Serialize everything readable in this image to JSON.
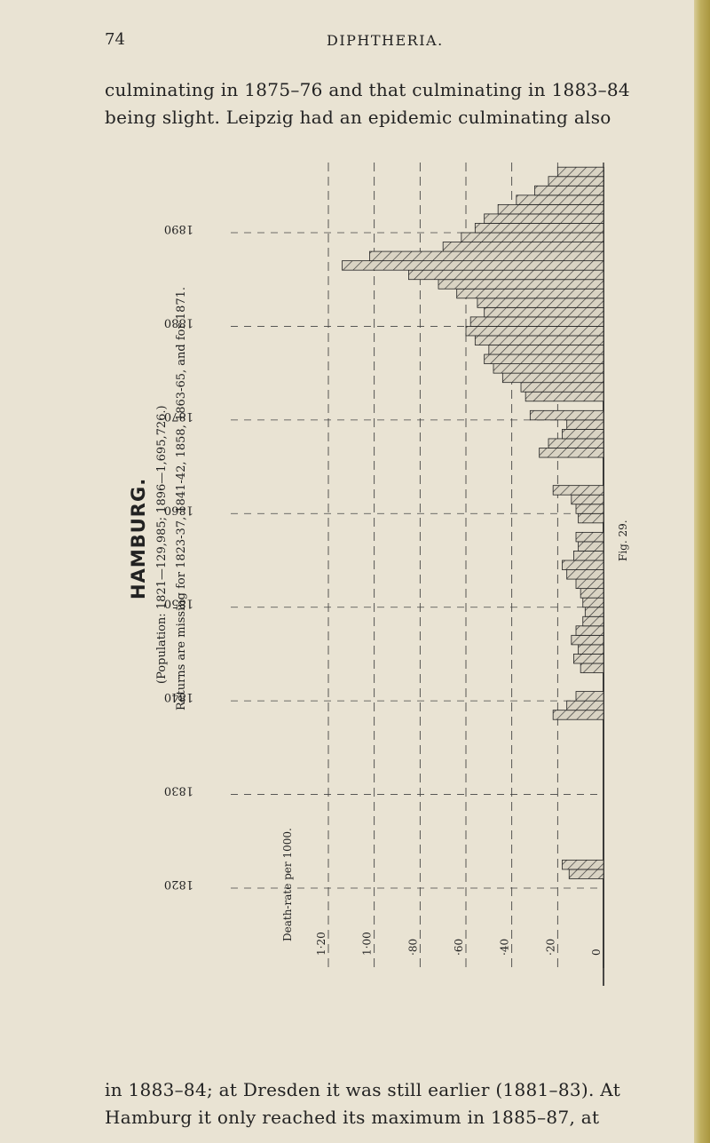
{
  "page": {
    "page_number": "74",
    "running_head": "DIPHTHERIA."
  },
  "text": {
    "top_line_1": "culminating in 1875–76 and that culminating in 1883–84",
    "top_line_2": "being slight. Leipzig had an epidemic culminating also",
    "bottom_line_1": "in 1883–84; at Dresden it was still earlier (1881–83). At",
    "bottom_line_2": "Hamburg it only reached its maximum in 1885–87, at"
  },
  "figure": {
    "label": "Fig. 29.",
    "title": "HAMBURG.",
    "subtitle_1": "(Population: 1821—129,985; 1896—1,695,726.)",
    "subtitle_2": "Returns are missing for 1823-37, 1841-42, 1858, 1863-65, and for 1871."
  },
  "chart_data": {
    "type": "bar",
    "title": "HAMBURG.",
    "orientation": "horizontal, printed rotated 90°",
    "year_axis": {
      "label": "",
      "ticks": [
        "1820",
        "1830",
        "1840",
        "1850",
        "1860",
        "1870",
        "1880",
        "1890"
      ],
      "range": [
        1820,
        1896
      ]
    },
    "rate_axis": {
      "label": "Death-rate per 1000.",
      "ticks": [
        "1·20",
        "1·00",
        "·80",
        "·60",
        "·40",
        "·20",
        "0"
      ],
      "range": [
        0,
        1.2
      ]
    },
    "grid": true,
    "fill": "hatched",
    "values": [
      {
        "year": 1821,
        "rate": 0.15
      },
      {
        "year": 1822,
        "rate": 0.18
      },
      {
        "year": 1838,
        "rate": 0.22
      },
      {
        "year": 1839,
        "rate": 0.16
      },
      {
        "year": 1840,
        "rate": 0.12
      },
      {
        "year": 1843,
        "rate": 0.1
      },
      {
        "year": 1844,
        "rate": 0.13
      },
      {
        "year": 1845,
        "rate": 0.11
      },
      {
        "year": 1846,
        "rate": 0.14
      },
      {
        "year": 1847,
        "rate": 0.12
      },
      {
        "year": 1848,
        "rate": 0.09
      },
      {
        "year": 1849,
        "rate": 0.08
      },
      {
        "year": 1850,
        "rate": 0.09
      },
      {
        "year": 1851,
        "rate": 0.1
      },
      {
        "year": 1852,
        "rate": 0.12
      },
      {
        "year": 1853,
        "rate": 0.16
      },
      {
        "year": 1854,
        "rate": 0.18
      },
      {
        "year": 1855,
        "rate": 0.13
      },
      {
        "year": 1856,
        "rate": 0.11
      },
      {
        "year": 1857,
        "rate": 0.12
      },
      {
        "year": 1859,
        "rate": 0.11
      },
      {
        "year": 1860,
        "rate": 0.12
      },
      {
        "year": 1861,
        "rate": 0.14
      },
      {
        "year": 1862,
        "rate": 0.22
      },
      {
        "year": 1866,
        "rate": 0.28
      },
      {
        "year": 1867,
        "rate": 0.24
      },
      {
        "year": 1868,
        "rate": 0.18
      },
      {
        "year": 1869,
        "rate": 0.16
      },
      {
        "year": 1870,
        "rate": 0.32
      },
      {
        "year": 1872,
        "rate": 0.34
      },
      {
        "year": 1873,
        "rate": 0.36
      },
      {
        "year": 1874,
        "rate": 0.44
      },
      {
        "year": 1875,
        "rate": 0.48
      },
      {
        "year": 1876,
        "rate": 0.52
      },
      {
        "year": 1877,
        "rate": 0.5
      },
      {
        "year": 1878,
        "rate": 0.56
      },
      {
        "year": 1879,
        "rate": 0.6
      },
      {
        "year": 1880,
        "rate": 0.58
      },
      {
        "year": 1881,
        "rate": 0.52
      },
      {
        "year": 1882,
        "rate": 0.55
      },
      {
        "year": 1883,
        "rate": 0.64
      },
      {
        "year": 1884,
        "rate": 0.72
      },
      {
        "year": 1885,
        "rate": 0.85
      },
      {
        "year": 1886,
        "rate": 1.14
      },
      {
        "year": 1887,
        "rate": 1.02
      },
      {
        "year": 1888,
        "rate": 0.7
      },
      {
        "year": 1889,
        "rate": 0.62
      },
      {
        "year": 1890,
        "rate": 0.56
      },
      {
        "year": 1891,
        "rate": 0.52
      },
      {
        "year": 1892,
        "rate": 0.46
      },
      {
        "year": 1893,
        "rate": 0.38
      },
      {
        "year": 1894,
        "rate": 0.3
      },
      {
        "year": 1895,
        "rate": 0.24
      },
      {
        "year": 1896,
        "rate": 0.2
      }
    ]
  }
}
